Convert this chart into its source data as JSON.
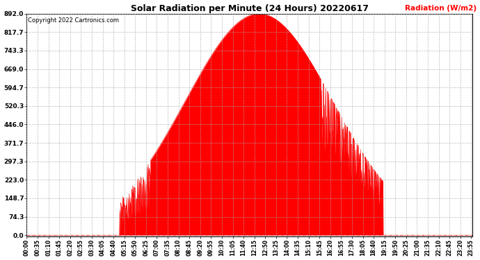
{
  "title": "Solar Radiation per Minute (24 Hours) 20220617",
  "ylabel": "Radiation (W/m2)",
  "copyright_text": "Copyright 2022 Cartronics.com",
  "fill_color": "#FF0000",
  "line_color": "#FF0000",
  "background_color": "#FFFFFF",
  "grid_color": "#AAAAAA",
  "yticks": [
    0.0,
    74.3,
    148.7,
    223.0,
    297.3,
    371.7,
    446.0,
    520.3,
    594.7,
    669.0,
    743.3,
    817.7,
    892.0
  ],
  "ymax": 892.0,
  "ymin": 0.0,
  "total_minutes": 1440,
  "peak_minute": 750,
  "peak_value": 892.0,
  "sunrise_minute": 300,
  "sunset_minute": 1150,
  "figwidth": 6.9,
  "figheight": 3.75,
  "dpi": 100
}
